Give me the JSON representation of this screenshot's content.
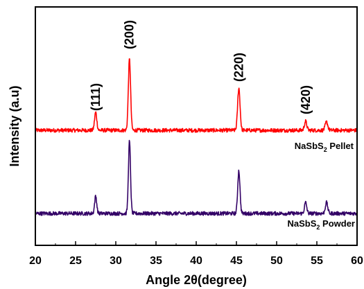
{
  "chart_data": {
    "type": "line",
    "xlabel": "Angle 2θ(degree)",
    "ylabel": "Intensity (a.u)",
    "xlim": [
      20,
      60
    ],
    "x_ticks": [
      20,
      25,
      30,
      35,
      40,
      45,
      50,
      55,
      60
    ],
    "y_ticks_shown": false,
    "grid": false,
    "series": [
      {
        "name": "NaSbS₂ Pellet",
        "name_parts": {
          "base": "NaSbS",
          "sub": "2",
          "suffix": " Pellet"
        },
        "color": "#ff0000",
        "baseline": 1.3,
        "noise": 0.03,
        "peaks": [
          {
            "x": 27.5,
            "height": 0.28,
            "width": 0.14
          },
          {
            "x": 31.7,
            "height": 1.11,
            "width": 0.14
          },
          {
            "x": 45.3,
            "height": 0.66,
            "width": 0.15
          },
          {
            "x": 53.6,
            "height": 0.14,
            "width": 0.15
          },
          {
            "x": 56.2,
            "height": 0.13,
            "width": 0.16
          }
        ]
      },
      {
        "name": "NaSbS₂ Powder",
        "name_parts": {
          "base": "NaSbS",
          "sub": "2",
          "suffix": " Powder"
        },
        "color": "#330066",
        "baseline": 0.0,
        "noise": 0.03,
        "peaks": [
          {
            "x": 27.5,
            "height": 0.27,
            "width": 0.13
          },
          {
            "x": 31.7,
            "height": 1.13,
            "width": 0.13
          },
          {
            "x": 45.3,
            "height": 0.67,
            "width": 0.14
          },
          {
            "x": 53.6,
            "height": 0.17,
            "width": 0.14
          },
          {
            "x": 56.2,
            "height": 0.17,
            "width": 0.15
          }
        ]
      }
    ],
    "annotations": [
      {
        "text": "(111)",
        "x": 27.5
      },
      {
        "text": "(200)",
        "x": 31.7
      },
      {
        "text": "(220)",
        "x": 45.3
      },
      {
        "text": "(420)",
        "x": 53.6
      }
    ]
  }
}
